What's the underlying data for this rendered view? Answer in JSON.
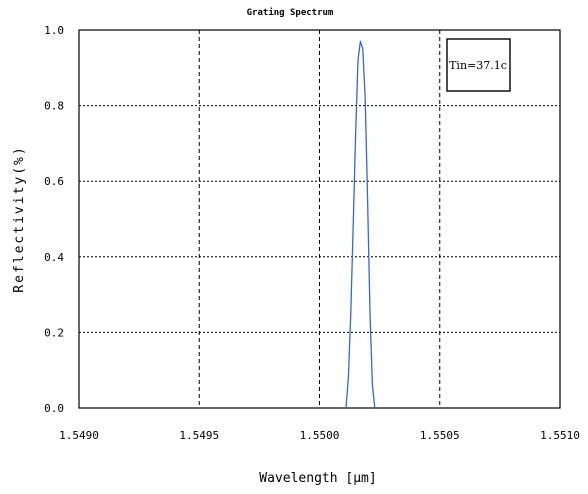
{
  "chart_data": {
    "type": "line",
    "title": "Grating Spectrum",
    "xlabel": "Wavelength [µm]",
    "ylabel": "Reflectivity(%)",
    "xlim": [
      1.549,
      1.551
    ],
    "ylim": [
      0,
      1.0
    ],
    "x_ticks": [
      "1.5490",
      "1.5495",
      "1.5500",
      "1.5505",
      "1.5510"
    ],
    "y_ticks": [
      "0.0",
      "0.2",
      "0.4",
      "0.6",
      "0.8",
      "1.0"
    ],
    "grid": true,
    "series_color": "#3a66cc",
    "series": [
      {
        "x": [
          1.55011,
          1.55012,
          1.55013,
          1.55014,
          1.55015,
          1.55016,
          1.55017,
          1.55018,
          1.55019,
          1.5502,
          1.55021,
          1.55022,
          1.55023
        ],
        "y": [
          0.0,
          0.08,
          0.25,
          0.48,
          0.72,
          0.92,
          0.97,
          0.95,
          0.82,
          0.55,
          0.25,
          0.06,
          0.0
        ]
      }
    ],
    "annotation": "Tin=37.1c"
  }
}
